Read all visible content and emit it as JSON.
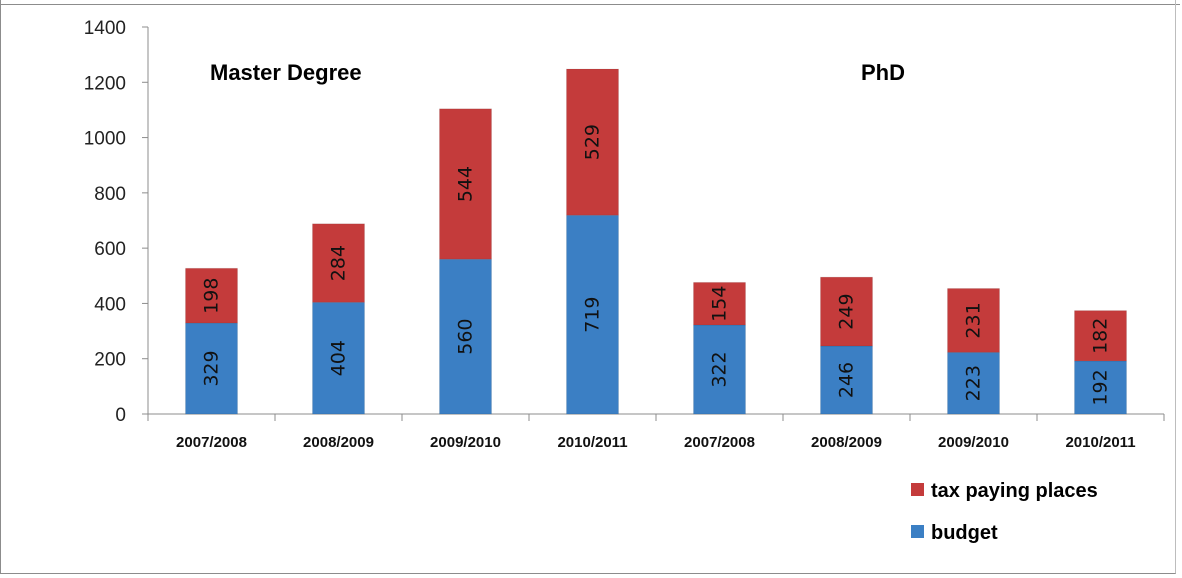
{
  "chart_data": {
    "type": "bar",
    "stacked": true,
    "categories": [
      "2007/2008",
      "2008/2009",
      "2009/2010",
      "2010/2011",
      "2007/2008",
      "2008/2009",
      "2009/2010",
      "2010/2011"
    ],
    "groups": [
      {
        "label": "Master Degree",
        "categories": [
          "2007/2008",
          "2008/2009",
          "2009/2010",
          "2010/2011"
        ]
      },
      {
        "label": "PhD",
        "categories": [
          "2007/2008",
          "2008/2009",
          "2009/2010",
          "2010/2011"
        ]
      }
    ],
    "series": [
      {
        "name": "budget",
        "color": "#3b7fc4",
        "values": [
          329,
          404,
          560,
          719,
          322,
          246,
          223,
          192
        ]
      },
      {
        "name": "tax paying places",
        "color": "#c43b3b",
        "values": [
          198,
          284,
          544,
          529,
          154,
          249,
          231,
          182
        ]
      }
    ],
    "ylim": [
      0,
      1400
    ],
    "yticks": [
      "0",
      "200",
      "400",
      "600",
      "800",
      "1000",
      "1200",
      "1400"
    ],
    "legend": {
      "position": "bottom-right",
      "order": [
        "tax paying places",
        "budget"
      ]
    },
    "grid": false
  }
}
